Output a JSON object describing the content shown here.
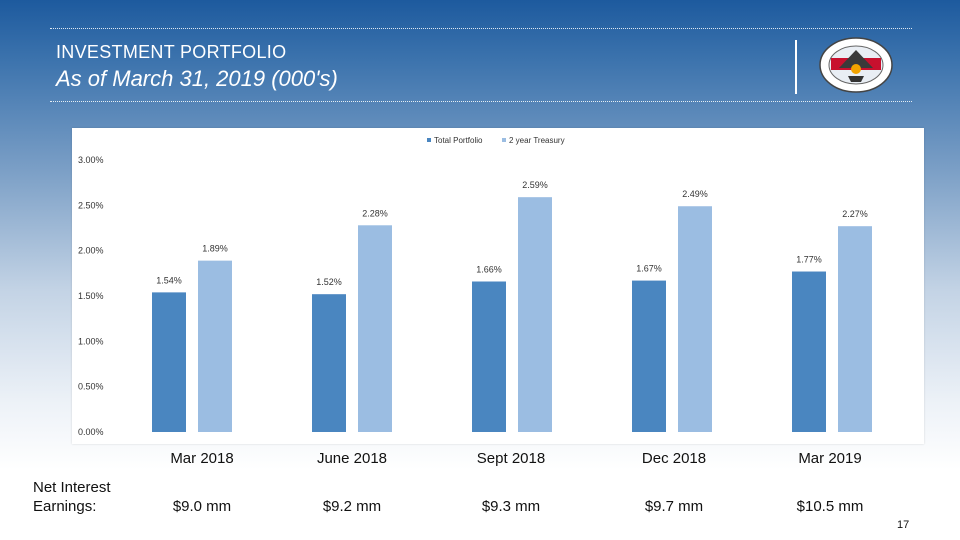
{
  "header": {
    "title": "INVESTMENT PORTFOLIO",
    "subtitle": "As of March 31, 2019 (000's)"
  },
  "logo": {
    "name": "seal-logo",
    "top_text": "SEAL OF THE",
    "bottom_text": "CITY OF"
  },
  "chart_data": {
    "type": "bar",
    "categories": [
      "Mar 2018",
      "June 2018",
      "Sept 2018",
      "Dec 2018",
      "Mar 2019"
    ],
    "series": [
      {
        "name": "Total Portfolio",
        "values": [
          1.54,
          1.52,
          1.66,
          1.67,
          1.77
        ],
        "labels": [
          "1.54%",
          "1.52%",
          "1.66%",
          "1.67%",
          "1.77%"
        ],
        "color": "#4a86c0"
      },
      {
        "name": "2 year Treasury",
        "values": [
          1.89,
          2.28,
          2.59,
          2.49,
          2.27
        ],
        "labels": [
          "1.89%",
          "2.28%",
          "2.59%",
          "2.49%",
          "2.27%"
        ],
        "color": "#9bbde2"
      }
    ],
    "ylim": [
      0,
      3.0
    ],
    "yticks": [
      0,
      0.5,
      1.0,
      1.5,
      2.0,
      2.5,
      3.0
    ],
    "ytick_labels": [
      "0.00%",
      "0.50%",
      "1.00%",
      "1.50%",
      "2.00%",
      "2.50%",
      "3.00%"
    ],
    "legend": "top-center",
    "grid": false,
    "title": "",
    "xlabel": "",
    "ylabel": ""
  },
  "earnings": {
    "label": "Net Interest Earnings:",
    "values": [
      "$9.0 mm",
      "$9.2 mm",
      "$9.3 mm",
      "$9.7 mm",
      "$10.5 mm"
    ]
  },
  "page_number": "17"
}
